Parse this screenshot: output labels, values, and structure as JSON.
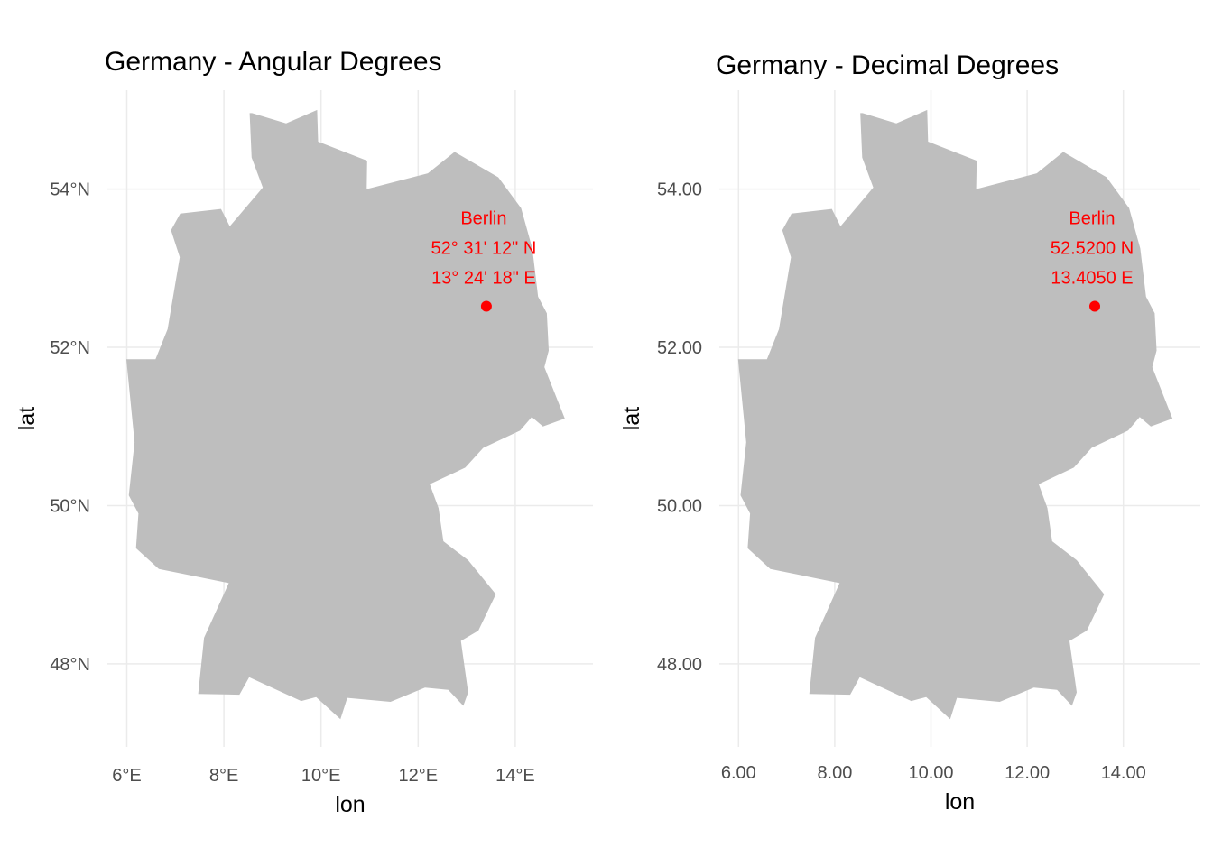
{
  "colors": {
    "land": "#bebebe",
    "grid": "#ebebeb",
    "marker": "#ff0000",
    "annotation": "#ff0000",
    "tick_text": "#4d4d4d",
    "title_text": "#000000"
  },
  "chart_data": [
    {
      "type": "map",
      "title": "Germany - Angular Degrees",
      "xlabel": "lon",
      "ylabel": "lat",
      "xlim": [
        5.6,
        15.6
      ],
      "ylim": [
        46.95,
        55.25
      ],
      "grid": true,
      "x_ticks": [
        6,
        8,
        10,
        12,
        14
      ],
      "x_tick_labels": [
        "6°E",
        "8°E",
        "10°E",
        "12°E",
        "14°E"
      ],
      "y_ticks": [
        48,
        50,
        52,
        54
      ],
      "y_tick_labels": [
        "48°N",
        "50°N",
        "52°N",
        "54°N"
      ],
      "region": "Germany",
      "point": {
        "label": "Berlin",
        "lat": 52.52,
        "lon": 13.405,
        "lat_text": "52° 31' 12\" N",
        "lon_text": "13° 24' 18\" E"
      }
    },
    {
      "type": "map",
      "title": "Germany - Decimal Degrees",
      "xlabel": "lon",
      "ylabel": "lat",
      "xlim": [
        5.6,
        15.6
      ],
      "ylim": [
        46.95,
        55.25
      ],
      "grid": true,
      "x_ticks": [
        6,
        8,
        10,
        12,
        14
      ],
      "x_tick_labels": [
        "6.00",
        "8.00",
        "10.00",
        "12.00",
        "14.00"
      ],
      "y_ticks": [
        48,
        50,
        52,
        54
      ],
      "y_tick_labels": [
        "48.00",
        "50.00",
        "52.00",
        "54.00"
      ],
      "region": "Germany",
      "point": {
        "label": "Berlin",
        "lat": 52.52,
        "lon": 13.405,
        "lat_text": "52.5200 N",
        "lon_text": "13.4050 E"
      }
    }
  ],
  "germany_outline": [
    [
      8.58,
      54.96
    ],
    [
      9.28,
      54.83
    ],
    [
      9.92,
      55.0
    ],
    [
      9.94,
      54.6
    ],
    [
      10.95,
      54.36
    ],
    [
      10.94,
      54.0
    ],
    [
      12.2,
      54.2
    ],
    [
      12.75,
      54.47
    ],
    [
      13.65,
      54.15
    ],
    [
      14.12,
      53.76
    ],
    [
      14.35,
      53.25
    ],
    [
      14.47,
      52.64
    ],
    [
      14.65,
      52.43
    ],
    [
      14.69,
      51.96
    ],
    [
      14.6,
      51.75
    ],
    [
      15.02,
      51.1
    ],
    [
      14.57,
      51.0
    ],
    [
      14.34,
      51.12
    ],
    [
      14.1,
      50.95
    ],
    [
      13.34,
      50.73
    ],
    [
      12.97,
      50.48
    ],
    [
      12.24,
      50.27
    ],
    [
      12.42,
      49.97
    ],
    [
      12.52,
      49.55
    ],
    [
      13.03,
      49.31
    ],
    [
      13.6,
      48.88
    ],
    [
      13.24,
      48.42
    ],
    [
      12.88,
      48.29
    ],
    [
      13.03,
      47.64
    ],
    [
      12.93,
      47.47
    ],
    [
      12.62,
      47.67
    ],
    [
      12.14,
      47.7
    ],
    [
      11.43,
      47.52
    ],
    [
      10.54,
      47.57
    ],
    [
      10.4,
      47.3
    ],
    [
      9.9,
      47.58
    ],
    [
      9.59,
      47.53
    ],
    [
      8.52,
      47.83
    ],
    [
      8.32,
      47.61
    ],
    [
      7.47,
      47.62
    ],
    [
      7.59,
      48.33
    ],
    [
      8.1,
      49.02
    ],
    [
      6.66,
      49.2
    ],
    [
      6.19,
      49.46
    ],
    [
      6.24,
      49.9
    ],
    [
      6.04,
      50.13
    ],
    [
      6.16,
      50.8
    ],
    [
      5.99,
      51.85
    ],
    [
      6.59,
      51.85
    ],
    [
      6.84,
      52.23
    ],
    [
      7.09,
      53.14
    ],
    [
      6.91,
      53.48
    ],
    [
      7.1,
      53.69
    ],
    [
      7.94,
      53.75
    ],
    [
      8.12,
      53.53
    ],
    [
      8.8,
      54.02
    ],
    [
      8.57,
      54.4
    ],
    [
      8.53,
      54.96
    ]
  ]
}
